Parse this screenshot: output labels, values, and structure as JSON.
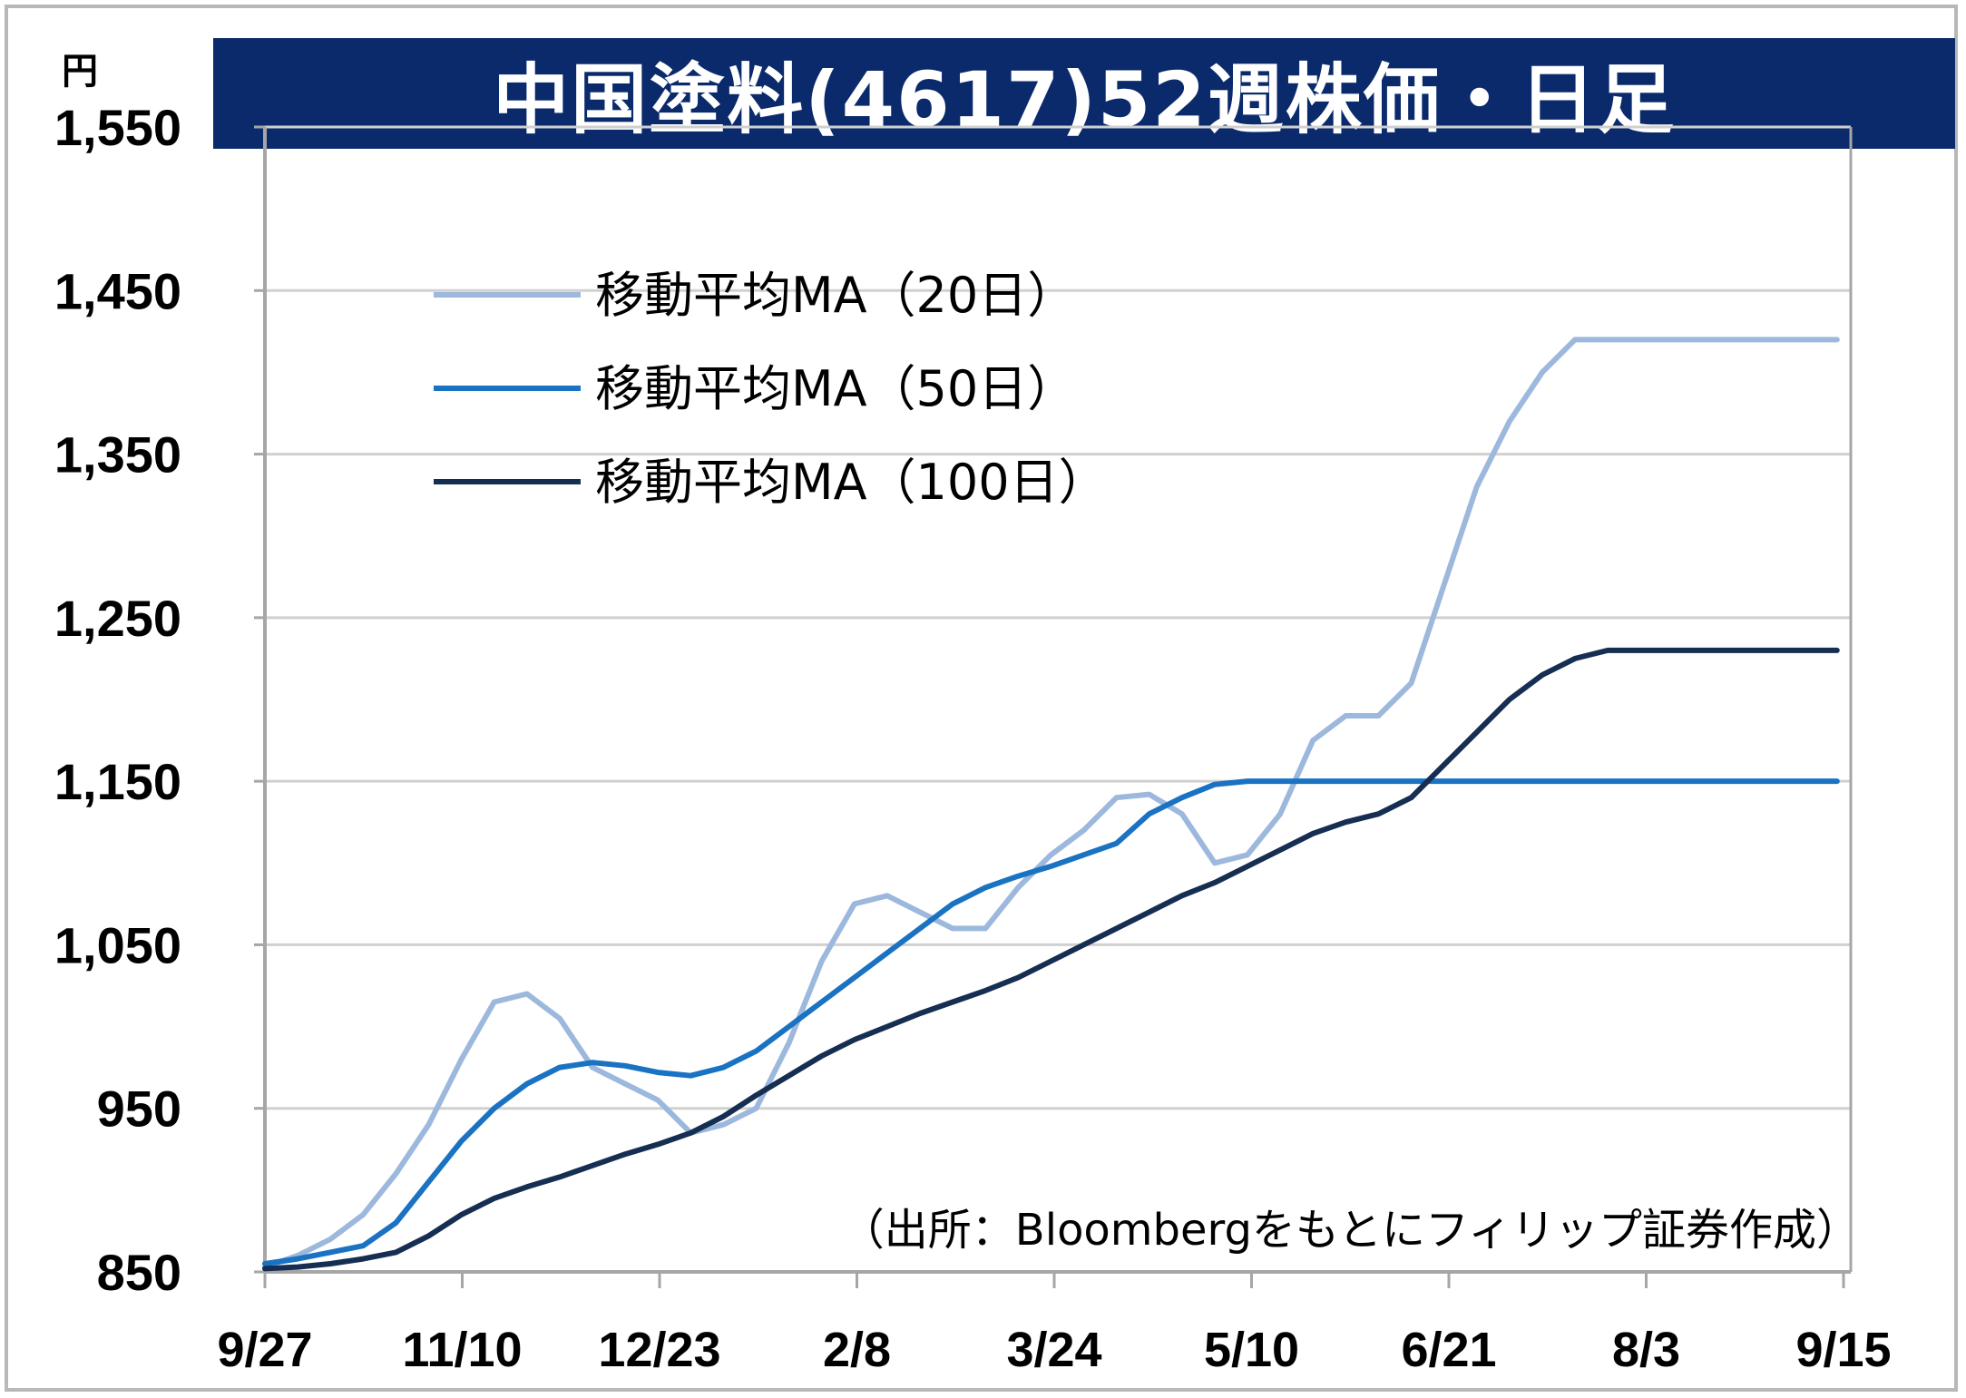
{
  "title": "中国塗料(4617)52週株価・日足",
  "unit": "円",
  "source": "（出所：Bloombergをもとにフィリップ証券作成）",
  "legend": [
    {
      "label": "移動平均MA（20日）",
      "color": "#9db8dd"
    },
    {
      "label": "移動平均MA（50日）",
      "color": "#1a72c2"
    },
    {
      "label": "移動平均MA（100日）",
      "color": "#152e52"
    }
  ],
  "colors": {
    "up": "#ee1c1c",
    "down": "#19b04b",
    "title_bg": "#0b2a6b",
    "grid": "#d0d0d0"
  },
  "chart_data": {
    "type": "line",
    "subtype": "candlestick",
    "title": "中国塗料(4617)52週株価・日足",
    "ylabel": "円",
    "ylim": [
      850,
      1550
    ],
    "yticks": [
      "850",
      "950",
      "1,050",
      "1,150",
      "1,250",
      "1,350",
      "1,450",
      "1,550"
    ],
    "ytick_values": [
      850,
      950,
      1050,
      1150,
      1250,
      1350,
      1450,
      1550
    ],
    "xtick_labels": [
      "9/27",
      "11/10",
      "12/23",
      "2/8",
      "3/24",
      "5/10",
      "6/21",
      "8/3",
      "9/15"
    ],
    "grid": true,
    "legend_position": "top-left",
    "n_days": 242,
    "series": [
      {
        "name": "移動平均MA（20日）",
        "x": [
          0,
          5,
          10,
          15,
          20,
          25,
          30,
          35,
          40,
          45,
          50,
          55,
          60,
          65,
          70,
          75,
          80,
          85,
          90,
          95,
          100,
          105,
          110,
          115,
          120,
          125,
          130,
          135,
          140,
          145,
          150,
          155,
          160,
          165,
          170,
          175,
          180,
          185,
          190,
          195,
          200,
          205,
          210,
          215,
          220,
          225,
          230,
          235,
          240
        ],
        "values": [
          853,
          860,
          870,
          885,
          910,
          940,
          980,
          1015,
          1020,
          1005,
          975,
          965,
          955,
          935,
          940,
          950,
          990,
          1040,
          1075,
          1080,
          1070,
          1060,
          1060,
          1085,
          1105,
          1120,
          1140,
          1142,
          1130,
          1100,
          1105,
          1130,
          1175,
          1190,
          1190,
          1210,
          1270,
          1330,
          1370,
          1400,
          1420,
          1420,
          1420,
          1420,
          1420,
          1420,
          1420,
          1420,
          1420
        ]
      },
      {
        "name": "移動平均MA（50日）",
        "x": [
          0,
          5,
          10,
          15,
          20,
          25,
          30,
          35,
          40,
          45,
          50,
          55,
          60,
          65,
          70,
          75,
          80,
          85,
          90,
          95,
          100,
          105,
          110,
          115,
          120,
          125,
          130,
          135,
          140,
          145,
          150,
          155,
          160,
          165,
          170,
          175,
          180,
          185,
          190,
          195,
          200,
          205,
          210,
          215,
          220,
          225,
          230,
          235,
          240
        ],
        "values": [
          855,
          858,
          862,
          866,
          880,
          905,
          930,
          950,
          965,
          975,
          978,
          976,
          972,
          970,
          975,
          985,
          1000,
          1015,
          1030,
          1045,
          1060,
          1075,
          1085,
          1092,
          1098,
          1105,
          1112,
          1130,
          1140,
          1148,
          1150,
          1150,
          1150,
          1150,
          1150,
          1150,
          1150,
          1150,
          1150,
          1150,
          1150,
          1150,
          1150,
          1150,
          1150,
          1150,
          1150,
          1150,
          1150
        ]
      },
      {
        "name": "移動平均MA（100日）",
        "x": [
          0,
          5,
          10,
          15,
          20,
          25,
          30,
          35,
          40,
          45,
          50,
          55,
          60,
          65,
          70,
          75,
          80,
          85,
          90,
          95,
          100,
          105,
          110,
          115,
          120,
          125,
          130,
          135,
          140,
          145,
          150,
          155,
          160,
          165,
          170,
          175,
          180,
          185,
          190,
          195,
          200,
          205,
          210,
          215,
          220,
          225,
          230,
          235,
          240
        ],
        "values": [
          852,
          853,
          855,
          858,
          862,
          872,
          885,
          895,
          902,
          908,
          915,
          922,
          928,
          935,
          945,
          958,
          970,
          982,
          992,
          1000,
          1008,
          1015,
          1022,
          1030,
          1040,
          1050,
          1060,
          1070,
          1080,
          1088,
          1098,
          1108,
          1118,
          1125,
          1130,
          1140,
          1160,
          1180,
          1200,
          1215,
          1225,
          1230,
          1230,
          1230,
          1230,
          1230,
          1230,
          1230,
          1230
        ]
      }
    ]
  }
}
